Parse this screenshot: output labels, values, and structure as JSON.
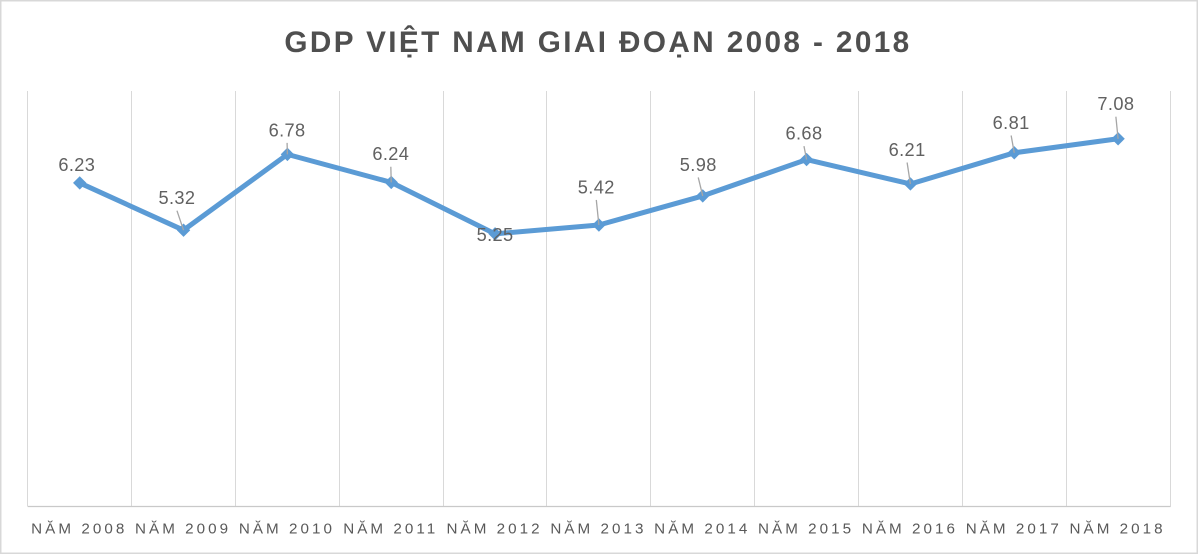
{
  "chart_data": {
    "type": "line",
    "title": "GDP VIỆT NAM GIAI ĐOẠN 2008 - 2018",
    "categories": [
      "NĂM 2008",
      "NĂM 2009",
      "NĂM 2010",
      "NĂM 2011",
      "NĂM 2012",
      "NĂM 2013",
      "NĂM 2014",
      "NĂM 2015",
      "NĂM 2016",
      "NĂM 2017",
      "NĂM 2018"
    ],
    "values": [
      6.23,
      5.32,
      6.78,
      6.24,
      5.25,
      5.42,
      5.98,
      6.68,
      6.21,
      6.81,
      7.08
    ],
    "data_labels": [
      "6.23",
      "5.32",
      "6.78",
      "6.24",
      "5.25",
      "5.42",
      "5.98",
      "6.68",
      "6.21",
      "6.81",
      "7.08"
    ],
    "xlabel": "",
    "ylabel": "",
    "ylim": [
      0,
      8
    ],
    "grid": "vertical-only",
    "legend": "none",
    "label_layout": [
      {
        "dx": -2.9,
        "dy": -11.7,
        "leader": false
      },
      {
        "dx": -6.6,
        "dy": -26.0,
        "leader": true
      },
      {
        "dx": -0.3,
        "dy": -18.0,
        "leader": true
      },
      {
        "dx": -0.4,
        "dy": -22.2,
        "leader": true
      },
      {
        "dx": 0.0,
        "dy": 7.3,
        "leader": false
      },
      {
        "dx": -2.6,
        "dy": -31.6,
        "leader": true
      },
      {
        "dx": -4.5,
        "dy": -25.0,
        "leader": true
      },
      {
        "dx": -2.6,
        "dy": -19.9,
        "leader": true
      },
      {
        "dx": -3.3,
        "dy": -28.0,
        "leader": true
      },
      {
        "dx": -3.1,
        "dy": -23.8,
        "leader": true
      },
      {
        "dx": -2.2,
        "dy": -28.6,
        "leader": true
      }
    ],
    "colors": {
      "series": "#5B9BD5",
      "title": "#4f4f4f",
      "data_label": "#616161",
      "axis_label": "#595959",
      "gridline": "#D9D9D9",
      "axis_line": "#C9C9C9",
      "leader_line": "#A6A6A6",
      "canvas_border": "#D8D8D8",
      "background": "#FFFFFF"
    }
  }
}
